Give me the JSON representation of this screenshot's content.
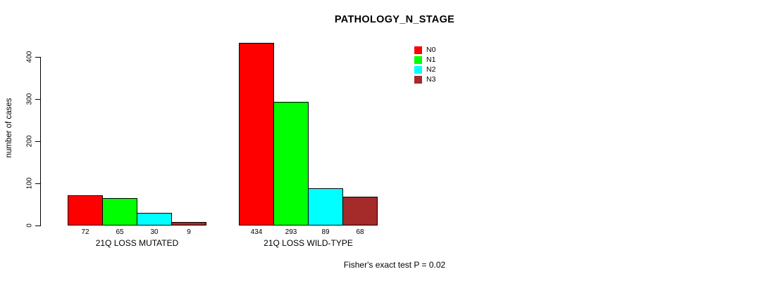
{
  "chart_data": {
    "type": "bar",
    "title": "PATHOLOGY_N_STAGE",
    "ylabel": "number of cases",
    "xlabel": "",
    "categories": [
      "21Q LOSS MUTATED",
      "21Q LOSS WILD-TYPE"
    ],
    "series": [
      {
        "name": "N0",
        "color": "#ff0000",
        "values": [
          72,
          434
        ]
      },
      {
        "name": "N1",
        "color": "#00ff00",
        "values": [
          65,
          293
        ]
      },
      {
        "name": "N2",
        "color": "#00ffff",
        "values": [
          30,
          89
        ]
      },
      {
        "name": "N3",
        "color": "#a52a2a",
        "values": [
          9,
          68
        ]
      }
    ],
    "yticks": [
      0,
      100,
      200,
      300,
      400
    ],
    "ylim": [
      0,
      440
    ],
    "grid": false,
    "bar_value_labels": true,
    "legend_position": "top-right",
    "annotation": "Fisher's exact test P = 0.02"
  },
  "colors": {
    "background": "#ffffff",
    "axis": "#000000",
    "bar_border": "#000000"
  }
}
